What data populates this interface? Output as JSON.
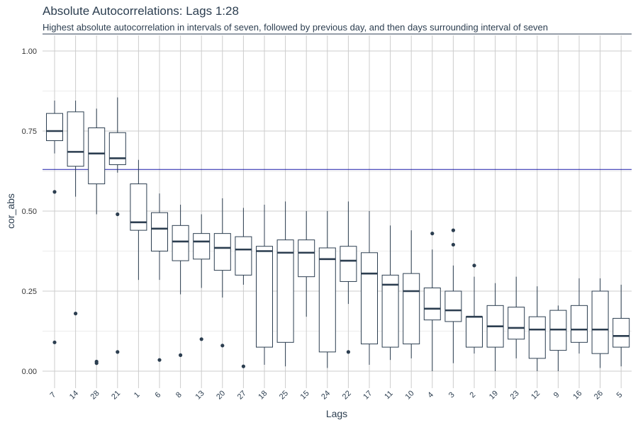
{
  "chart_data": {
    "type": "box",
    "title": "Absolute Autocorrelations: Lags 1:28",
    "subtitle": "Highest absolute autocorrelation in intervals of seven, followed by previous day, and then days surrounding interval of seven",
    "xlabel": "Lags",
    "ylabel": "cor_abs",
    "ylim": [
      0,
      1
    ],
    "yticks": [
      "0.00",
      "0.25",
      "0.50",
      "0.75",
      "1.00"
    ],
    "grid": true,
    "reference_line": {
      "y": 0.63,
      "color": "#1a1aa8"
    },
    "box_color": "#2c3e50",
    "boxes": [
      {
        "lag": "7",
        "q1": 0.72,
        "median": 0.75,
        "q3": 0.805,
        "whisker_low": 0.68,
        "whisker_high": 0.845,
        "outliers": [
          0.56,
          0.09
        ]
      },
      {
        "lag": "14",
        "q1": 0.64,
        "median": 0.685,
        "q3": 0.81,
        "whisker_low": 0.545,
        "whisker_high": 0.845,
        "outliers": [
          0.18
        ]
      },
      {
        "lag": "28",
        "q1": 0.585,
        "median": 0.68,
        "q3": 0.76,
        "whisker_low": 0.49,
        "whisker_high": 0.82,
        "outliers": [
          0.03,
          0.025
        ]
      },
      {
        "lag": "21",
        "q1": 0.645,
        "median": 0.665,
        "q3": 0.745,
        "whisker_low": 0.62,
        "whisker_high": 0.855,
        "outliers": [
          0.49,
          0.06
        ]
      },
      {
        "lag": "1",
        "q1": 0.44,
        "median": 0.465,
        "q3": 0.585,
        "whisker_low": 0.285,
        "whisker_high": 0.66,
        "outliers": []
      },
      {
        "lag": "6",
        "q1": 0.375,
        "median": 0.445,
        "q3": 0.495,
        "whisker_low": 0.285,
        "whisker_high": 0.555,
        "outliers": [
          0.035
        ]
      },
      {
        "lag": "8",
        "q1": 0.345,
        "median": 0.405,
        "q3": 0.455,
        "whisker_low": 0.24,
        "whisker_high": 0.52,
        "outliers": [
          0.05
        ]
      },
      {
        "lag": "13",
        "q1": 0.35,
        "median": 0.405,
        "q3": 0.43,
        "whisker_low": 0.26,
        "whisker_high": 0.49,
        "outliers": [
          0.1
        ]
      },
      {
        "lag": "20",
        "q1": 0.315,
        "median": 0.385,
        "q3": 0.43,
        "whisker_low": 0.23,
        "whisker_high": 0.54,
        "outliers": [
          0.08
        ]
      },
      {
        "lag": "27",
        "q1": 0.3,
        "median": 0.38,
        "q3": 0.42,
        "whisker_low": 0.27,
        "whisker_high": 0.51,
        "outliers": [
          0.015
        ]
      },
      {
        "lag": "18",
        "q1": 0.075,
        "median": 0.375,
        "q3": 0.39,
        "whisker_low": 0.02,
        "whisker_high": 0.52,
        "outliers": []
      },
      {
        "lag": "25",
        "q1": 0.09,
        "median": 0.37,
        "q3": 0.41,
        "whisker_low": 0.015,
        "whisker_high": 0.53,
        "outliers": []
      },
      {
        "lag": "15",
        "q1": 0.295,
        "median": 0.37,
        "q3": 0.41,
        "whisker_low": 0.17,
        "whisker_high": 0.5,
        "outliers": []
      },
      {
        "lag": "24",
        "q1": 0.06,
        "median": 0.35,
        "q3": 0.385,
        "whisker_low": 0.01,
        "whisker_high": 0.5,
        "outliers": []
      },
      {
        "lag": "22",
        "q1": 0.28,
        "median": 0.345,
        "q3": 0.39,
        "whisker_low": 0.21,
        "whisker_high": 0.53,
        "outliers": [
          0.06
        ]
      },
      {
        "lag": "17",
        "q1": 0.085,
        "median": 0.305,
        "q3": 0.37,
        "whisker_low": 0.02,
        "whisker_high": 0.5,
        "outliers": []
      },
      {
        "lag": "11",
        "q1": 0.075,
        "median": 0.27,
        "q3": 0.3,
        "whisker_low": 0.035,
        "whisker_high": 0.455,
        "outliers": []
      },
      {
        "lag": "10",
        "q1": 0.085,
        "median": 0.25,
        "q3": 0.305,
        "whisker_low": 0.04,
        "whisker_high": 0.44,
        "outliers": []
      },
      {
        "lag": "4",
        "q1": 0.16,
        "median": 0.195,
        "q3": 0.26,
        "whisker_low": 0.0,
        "whisker_high": 0.38,
        "outliers": [
          0.43
        ]
      },
      {
        "lag": "3",
        "q1": 0.155,
        "median": 0.19,
        "q3": 0.25,
        "whisker_low": 0.025,
        "whisker_high": 0.33,
        "outliers": [
          0.44,
          0.395
        ]
      },
      {
        "lag": "2",
        "q1": 0.075,
        "median": 0.17,
        "q3": 0.17,
        "whisker_low": 0.055,
        "whisker_high": 0.295,
        "outliers": [
          0.33
        ]
      },
      {
        "lag": "19",
        "q1": 0.075,
        "median": 0.14,
        "q3": 0.205,
        "whisker_low": 0.0,
        "whisker_high": 0.275,
        "outliers": []
      },
      {
        "lag": "23",
        "q1": 0.1,
        "median": 0.135,
        "q3": 0.2,
        "whisker_low": 0.04,
        "whisker_high": 0.295,
        "outliers": []
      },
      {
        "lag": "12",
        "q1": 0.04,
        "median": 0.13,
        "q3": 0.17,
        "whisker_low": 0.0,
        "whisker_high": 0.265,
        "outliers": []
      },
      {
        "lag": "9",
        "q1": 0.065,
        "median": 0.13,
        "q3": 0.19,
        "whisker_low": 0.0,
        "whisker_high": 0.205,
        "outliers": []
      },
      {
        "lag": "16",
        "q1": 0.09,
        "median": 0.13,
        "q3": 0.205,
        "whisker_low": 0.055,
        "whisker_high": 0.29,
        "outliers": []
      },
      {
        "lag": "26",
        "q1": 0.055,
        "median": 0.13,
        "q3": 0.25,
        "whisker_low": 0.01,
        "whisker_high": 0.29,
        "outliers": []
      },
      {
        "lag": "5",
        "q1": 0.075,
        "median": 0.11,
        "q3": 0.165,
        "whisker_low": 0.015,
        "whisker_high": 0.27,
        "outliers": []
      }
    ]
  }
}
